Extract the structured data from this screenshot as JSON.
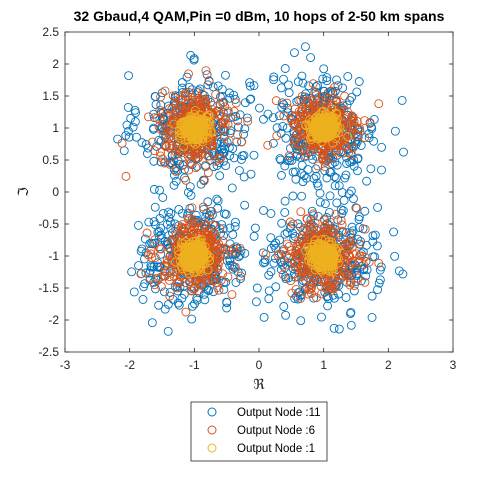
{
  "chart_data": {
    "type": "scatter",
    "title": "32 Gbaud,4 QAM,Pin =0 dBm, 10  hops of 2-50 km  spans",
    "xlabel": "ℜ",
    "ylabel": "ℑ",
    "xlim": [
      -3,
      3
    ],
    "ylim": [
      -2.5,
      2.5
    ],
    "x_ticks": [
      -3,
      -2,
      -1,
      0,
      1,
      2,
      3
    ],
    "y_ticks": [
      -2.5,
      -2,
      -1.5,
      -1,
      -0.5,
      0,
      0.5,
      1,
      1.5,
      2,
      2.5
    ],
    "x_tick_labels": [
      "-3",
      "-2",
      "-1",
      "0",
      "1",
      "2",
      "3"
    ],
    "y_tick_labels": [
      "-2.5",
      "-2",
      "-1.5",
      "-1",
      "-0.5",
      "0",
      "0.5",
      "1",
      "1.5",
      "2",
      "2.5"
    ],
    "grid": false,
    "legend_position": "bottom-outside",
    "marker": "open-circle",
    "constellation_points": [
      [
        -1,
        1
      ],
      [
        1,
        1
      ],
      [
        -1,
        -1
      ],
      [
        1,
        -1
      ]
    ],
    "series": [
      {
        "name": "Output Node :11",
        "color": "#0072BD",
        "spread": 0.42,
        "points_per_cluster": 320
      },
      {
        "name": "Output Node :6",
        "color": "#D95319",
        "spread": 0.27,
        "points_per_cluster": 320
      },
      {
        "name": "Output Node :1",
        "color": "#EDB120",
        "spread": 0.1,
        "points_per_cluster": 260
      }
    ]
  }
}
